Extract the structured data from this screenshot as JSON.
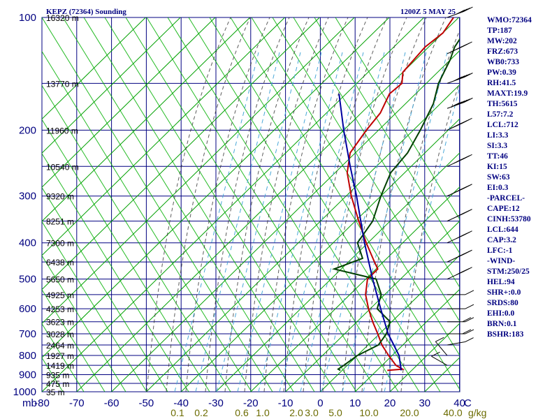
{
  "header": {
    "title": "KEPZ (72364) Sounding",
    "time": "1200Z  5 MAY 25"
  },
  "chart_data": {
    "type": "line",
    "title": "KEPZ (72364) Sounding",
    "valid": "1200Z  5 MAY 25",
    "y_axis_unit_label": "mb",
    "x_axis_unit_label": "C",
    "mixing_unit_label": "g/kg",
    "ylim": [
      1000,
      100
    ],
    "xlim": [
      -80,
      40
    ],
    "pressure_ticks": [
      "100",
      "200",
      "300",
      "400",
      "500",
      "600",
      "700",
      "800",
      "900",
      "1000"
    ],
    "temperature_ticks": [
      "-80",
      "-70",
      "-60",
      "-50",
      "-40",
      "-30",
      "-20",
      "-10",
      "0",
      "10",
      "20",
      "30",
      "40"
    ],
    "mixing_ratio_labels": [
      "0.1",
      "0.2",
      "0.6",
      "1.0",
      "2.0",
      "3.0",
      "5.0",
      "10.0",
      "20.0",
      "40.0"
    ],
    "height_labels": [
      {
        "p": 100,
        "text": "16320 m"
      },
      {
        "p": 150,
        "text": "13770 m"
      },
      {
        "p": 200,
        "text": "11960 m"
      },
      {
        "p": 250,
        "text": "10540 m"
      },
      {
        "p": 300,
        "text": "9320 m"
      },
      {
        "p": 350,
        "text": "8251 m"
      },
      {
        "p": 400,
        "text": "7300 m"
      },
      {
        "p": 450,
        "text": "6438 m"
      },
      {
        "p": 500,
        "text": "5650 m"
      },
      {
        "p": 550,
        "text": "4925 m"
      },
      {
        "p": 600,
        "text": "4253 m"
      },
      {
        "p": 650,
        "text": "3623 m"
      },
      {
        "p": 700,
        "text": "3028 m"
      },
      {
        "p": 750,
        "text": "2464 m"
      },
      {
        "p": 800,
        "text": "1927 m"
      },
      {
        "p": 850,
        "text": "1419 m"
      },
      {
        "p": 900,
        "text": "935 m"
      },
      {
        "p": 950,
        "text": "475 m"
      },
      {
        "p": 1000,
        "text": "35 m"
      }
    ],
    "series": [
      {
        "kind": "temperature",
        "color": "#c00000",
        "points": [
          [
            877,
            13.0
          ],
          [
            870,
            17.0
          ],
          [
            850,
            14.0
          ],
          [
            800,
            9.0
          ],
          [
            750,
            4.0
          ],
          [
            700,
            -0.5
          ],
          [
            650,
            -5.5
          ],
          [
            600,
            -10.5
          ],
          [
            550,
            -15.5
          ],
          [
            500,
            -19.5
          ],
          [
            470,
            -19.5
          ],
          [
            450,
            -22.5
          ],
          [
            400,
            -30.5
          ],
          [
            350,
            -39.0
          ],
          [
            300,
            -48.5
          ],
          [
            260,
            -56.5
          ],
          [
            230,
            -61.5
          ],
          [
            200,
            -63.5
          ],
          [
            180,
            -64.5
          ],
          [
            160,
            -67.5
          ],
          [
            150,
            -67.0
          ],
          [
            140,
            -70.0
          ],
          [
            120,
            -71.0
          ],
          [
            110,
            -70.0
          ],
          [
            100,
            -71.5
          ]
        ]
      },
      {
        "kind": "dewpoint",
        "color": "#004000",
        "points": [
          [
            877,
            -0.5
          ],
          [
            870,
            -1.5
          ],
          [
            850,
            -1.0
          ],
          [
            800,
            0.0
          ],
          [
            750,
            3.0
          ],
          [
            700,
            2.0
          ],
          [
            650,
            -0.5
          ],
          [
            600,
            -8.0
          ],
          [
            550,
            -11.0
          ],
          [
            500,
            -17.0
          ],
          [
            470,
            -32.0
          ],
          [
            440,
            -27.0
          ],
          [
            400,
            -33.0
          ],
          [
            350,
            -35.0
          ],
          [
            300,
            -40.0
          ],
          [
            260,
            -44.0
          ],
          [
            230,
            -45.0
          ],
          [
            200,
            -48.0
          ],
          [
            170,
            -52.0
          ],
          [
            150,
            -56.5
          ],
          [
            130,
            -60.0
          ],
          [
            120,
            -62.5
          ],
          [
            110,
            -64.0
          ],
          [
            104,
            -65.0
          ]
        ]
      },
      {
        "kind": "parcel",
        "color": "#0000a0",
        "points": [
          [
            877,
            17.0
          ],
          [
            800,
            12.0
          ],
          [
            700,
            2.5
          ],
          [
            600,
            -7.0
          ],
          [
            500,
            -18.0
          ],
          [
            400,
            -31.0
          ],
          [
            300,
            -47.0
          ],
          [
            250,
            -57.5
          ],
          [
            200,
            -70.0
          ],
          [
            160,
            -82.0
          ]
        ]
      }
    ],
    "wind_barbs_profile": [
      {
        "p": 100,
        "dir": 250,
        "spd": 45
      },
      {
        "p": 125,
        "dir": 245,
        "spd": 50
      },
      {
        "p": 150,
        "dir": 250,
        "spd": 55
      },
      {
        "p": 175,
        "dir": 250,
        "spd": 60
      },
      {
        "p": 200,
        "dir": 245,
        "spd": 60
      },
      {
        "p": 250,
        "dir": 245,
        "spd": 55
      },
      {
        "p": 300,
        "dir": 245,
        "spd": 50
      },
      {
        "p": 350,
        "dir": 245,
        "spd": 45
      },
      {
        "p": 400,
        "dir": 245,
        "spd": 45
      },
      {
        "p": 450,
        "dir": 245,
        "spd": 45
      },
      {
        "p": 500,
        "dir": 245,
        "spd": 40
      },
      {
        "p": 550,
        "dir": 270,
        "spd": 15
      },
      {
        "p": 600,
        "dir": 270,
        "spd": 15
      },
      {
        "p": 650,
        "dir": 270,
        "spd": 20
      },
      {
        "p": 700,
        "dir": 270,
        "spd": 20
      },
      {
        "p": 750,
        "dir": 260,
        "spd": 15
      },
      {
        "p": 800,
        "dir": 140,
        "spd": 10
      },
      {
        "p": 850,
        "dir": 120,
        "spd": 10
      }
    ]
  },
  "stats": [
    "WMO:72364",
    "TP:187",
    "MW:202",
    "FRZ:673",
    "WB0:733",
    "PW:0.39",
    "RH:41.5",
    "MAXT:19.9",
    "TH:5615",
    "L57:7.2",
    "LCL:712",
    "LI:3.3",
    "SI:3.3",
    "TT:46",
    "KI:15",
    "SW:63",
    "EI:0.3",
    "-PARCEL-",
    "CAPE:12",
    "CINH:53780",
    "LCL:644",
    "CAP:3.2",
    "LFC:-1",
    "-WIND-",
    "STM:250/25",
    "HEL:94",
    "SHR+:0.0",
    "SRDS:80",
    "EHI:0.0",
    "BRN:0.1",
    "BSHR:183"
  ]
}
